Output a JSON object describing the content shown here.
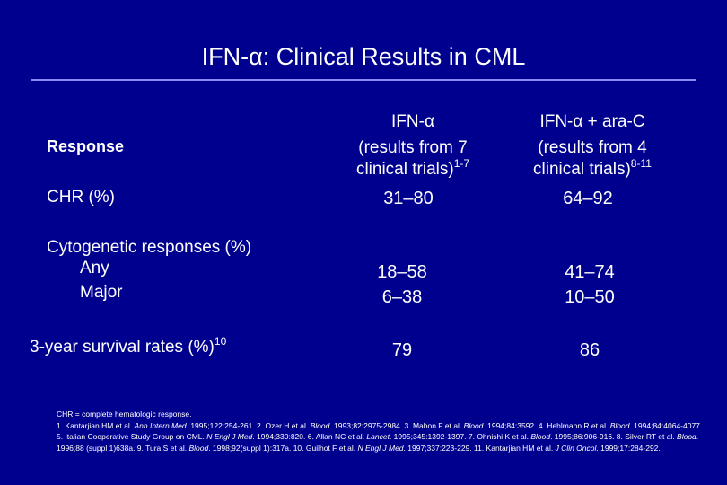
{
  "title": "IFN-α: Clinical Results in CML",
  "columns": {
    "col1": {
      "heading": "IFN-α",
      "sub_line1": "(results from 7",
      "sub_line2": "clinical trials)",
      "sup": "1-7"
    },
    "col2": {
      "heading": "IFN-α + ara-C",
      "sub_line1": "(results from 4",
      "sub_line2": "clinical trials)",
      "sup": "8-11"
    }
  },
  "rows": {
    "response_label": "Response",
    "chr": {
      "label": "CHR (%)",
      "ifn": "31–80",
      "ifn_arac": "64–92"
    },
    "cyto": {
      "label": "Cytogenetic responses (%)",
      "any_label": "Any",
      "major_label": "Major",
      "any_ifn": "18–58",
      "major_ifn": "6–38",
      "any_ifn_arac": "41–74",
      "major_ifn_arac": "10–50"
    },
    "survival": {
      "label": "3-year survival rates (%)",
      "sup": "10",
      "ifn": "79",
      "ifn_arac": "86"
    }
  },
  "footnotes": {
    "line1": "CHR = complete hematologic response.",
    "refs": [
      "1. Kantarjian HM et al. ",
      "Ann Intern Med",
      ". 1995;122:254-261. 2. Ozer H et al. ",
      "Blood",
      ". 1993;82:2975-2984. 3. Mahon F et al. ",
      "Blood",
      ". 1994;84:3592. 4. Hehlmann R et al. ",
      "Blood",
      ". 1994;84:4064-4077. 5. Italian Cooperative Study Group on CML. ",
      "N Engl J Med",
      ". 1994;330:820. 6. Allan NC et al. ",
      "Lancet",
      ". 1995;345:1392-1397. 7. Ohnishi K et al. ",
      "Blood",
      ". 1995;86:906-916. 8. Silver RT et al. ",
      "Blood",
      ". 1996;88 (suppl 1)638a. 9. Tura S et al. ",
      "Blood",
      ". 1998;92(suppl 1):317a. 10. Guilhot F et al. ",
      "N Engl J Med",
      ". 1997;337:223-229. 11. Kantarjian HM et al. ",
      "J Clin Oncol",
      ". 1999;17:284-292."
    ]
  }
}
